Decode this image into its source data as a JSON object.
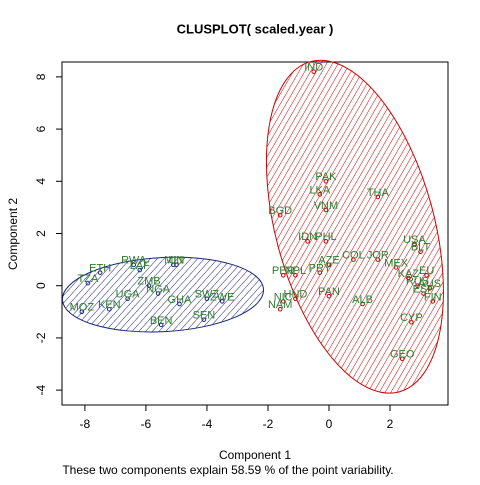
{
  "chart_data": {
    "type": "clusplot",
    "title": "CLUSPLOT( scaled.year )",
    "x_label": "Component 1",
    "y_label": "Component 2",
    "subtitle": "These two components explain 58.59 % of the point variability.",
    "xlim": [
      -8.75,
      3.9
    ],
    "ylim": [
      -4.57,
      8.57
    ],
    "xticks": [
      -8,
      -6,
      -4,
      -2,
      0,
      2
    ],
    "yticks": [
      -4,
      -2,
      0,
      2,
      4,
      6,
      8
    ],
    "label_color": "#2f7a2f",
    "ellipses": [
      {
        "center": [
          -5.44,
          -0.34
        ],
        "rx": 3.3,
        "ry": 1.42,
        "angle": -3,
        "color": "#1a237e"
      },
      {
        "center": [
          0.85,
          2.26
        ],
        "rx": 2.6,
        "ry": 6.55,
        "angle": -15,
        "color": "#cc0000"
      }
    ],
    "series": [
      {
        "color": "#1a237e",
        "x": [
          -7.5,
          -6.4,
          -7.9,
          -8.1,
          -7.2,
          -5.5,
          -4.1,
          -4.0,
          -3.5,
          -5.9,
          -5.6,
          -6.6,
          -5.1,
          -4.9,
          -6.2,
          -5.0
        ],
        "y": [
          0.5,
          0.8,
          0.1,
          -1.0,
          -0.9,
          -1.5,
          -1.3,
          -0.5,
          -0.6,
          -0.0,
          -0.3,
          -0.5,
          0.8,
          -0.7,
          0.6,
          0.8
        ],
        "labels": [
          "ETH",
          "RWA",
          "TZA",
          "MOZ",
          "KEN",
          "BEN",
          "SEN",
          "SWZ",
          "ZWE",
          "ZMB",
          "NGA",
          "UGA",
          "MLI",
          "GHA",
          "LAF",
          "UN"
        ]
      },
      {
        "color": "#cc0000",
        "x": [
          -0.5,
          -0.1,
          -0.3,
          -0.1,
          1.6,
          -1.6,
          -0.7,
          -0.1,
          0.8,
          1.6,
          2.8,
          0,
          -1.5,
          -0.3,
          -1.1,
          2.2,
          2.4,
          2.7,
          0,
          -1.1,
          -1.5,
          -1.6,
          3.0,
          3.2,
          2.9,
          3.4,
          1.1,
          2.6,
          3.1,
          3.3
        ],
        "y": [
          8.2,
          4.0,
          3.5,
          2.9,
          3.4,
          2.7,
          1.7,
          1.7,
          1.0,
          1.0,
          1.6,
          0.8,
          0.4,
          0.5,
          0.4,
          0.7,
          -2.8,
          -1.4,
          -0.4,
          -0.5,
          -0.6,
          -0.9,
          1.3,
          0.4,
          0.0,
          -0.6,
          -0.7,
          0.3,
          -0.3,
          -0.1
        ],
        "labels": [
          "IND",
          "PAK",
          "LKA",
          "VNM",
          "THA",
          "BGD",
          "IDN",
          "PHL",
          "COL",
          "JOR",
          "USA",
          "AZE",
          "PER",
          "PRY",
          "NPL",
          "MEX",
          "GEO",
          "CYP",
          "PAN",
          "HND",
          "NIC",
          "NAM",
          "BLT",
          "EU",
          "RUS",
          "FIN",
          "ALB",
          "KAZ",
          "ESP",
          "AUS"
        ]
      }
    ]
  }
}
